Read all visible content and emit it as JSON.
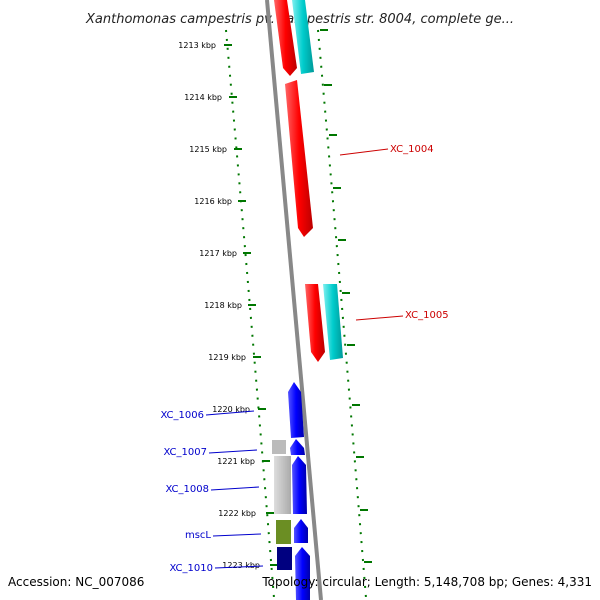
{
  "title": "Xanthomonas campestris pv. campestris str. 8004, complete ge...",
  "footer": {
    "accession": "Accession: NC_007086",
    "info": "Topology: circular; Length: 5,148,708 bp; Genes: 4,331"
  },
  "ticks": [
    "1213 kbp",
    "1214 kbp",
    "1215 kbp",
    "1216 kbp",
    "1217 kbp",
    "1218 kbp",
    "1219 kbp",
    "1220 kbp",
    "1221 kbp",
    "1222 kbp",
    "1223 kbp"
  ],
  "genes": [
    {
      "label": "XC_1004",
      "color": "#cc0000"
    },
    {
      "label": "XC_1005",
      "color": "#cc0000"
    },
    {
      "label": "XC_1006",
      "color": "#0000cc"
    },
    {
      "label": "XC_1007",
      "color": "#0000cc"
    },
    {
      "label": "XC_1008",
      "color": "#0000cc"
    },
    {
      "label": "mscL",
      "color": "#0000cc"
    },
    {
      "label": "XC_1010",
      "color": "#0000cc"
    }
  ],
  "colors": {
    "forward_cds": "#ff0000",
    "reverse_cds": "#0000ff",
    "rna": "#00cccc",
    "gray_feature": "#bbbbbb",
    "olive_feature": "#6b8e23",
    "navy_feature": "#000080",
    "tick": "#007700",
    "backbone": "#888888"
  }
}
